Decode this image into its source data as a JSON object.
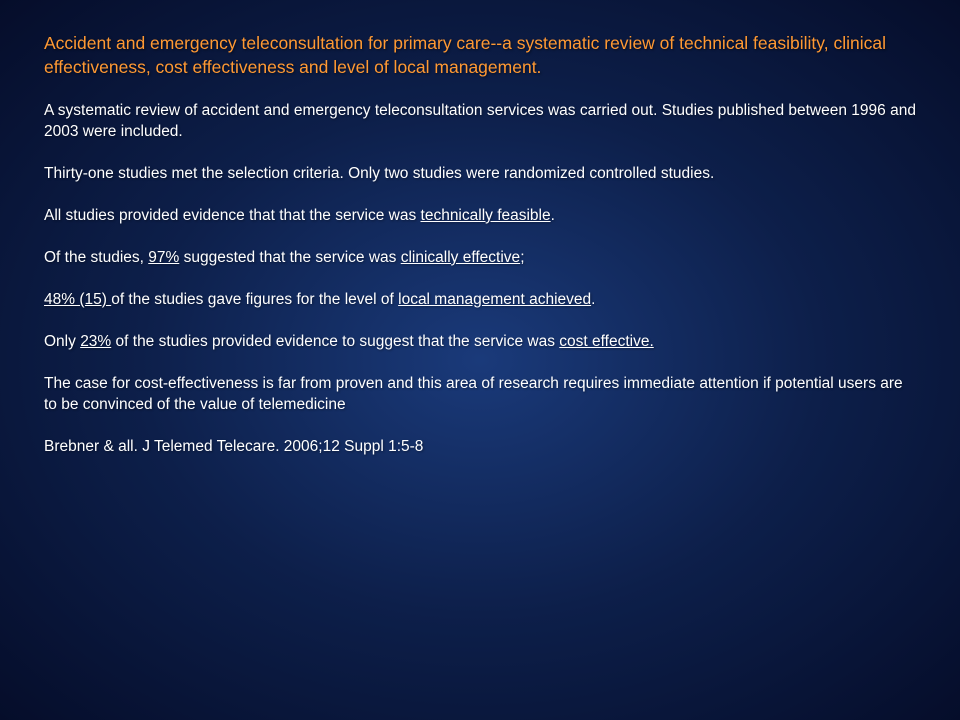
{
  "slide": {
    "background": {
      "gradient_center": "#1a3a7a",
      "gradient_mid": "#0d1f4a",
      "gradient_edge": "#050d2a"
    },
    "title": {
      "text": "Accident and emergency teleconsultation for primary care--a systematic review of technical feasibility, clinical effectiveness, cost effectiveness and level of local management.",
      "color": "#ff9933",
      "fontsize": 17.5
    },
    "body": {
      "color": "#ffffff",
      "fontsize": 15.5,
      "p1": "A systematic review of accident and emergency teleconsultation services was carried out. Studies published between 1996 and 2003 were included.",
      "p2": "Thirty-one studies met the selection criteria. Only two studies were randomized controlled studies.",
      "p3_pre": "All studies provided evidence that that the service was ",
      "p3_u": "technically feasible",
      "p3_post": ".",
      "p4_pre": "Of the studies, ",
      "p4_u1": "97%",
      "p4_mid": " suggested that the service was ",
      "p4_u2": "clinically effective",
      "p4_post": ";",
      "p5_u1": "48% (15) ",
      "p5_mid": "of the studies gave figures for the level of ",
      "p5_u2": "local management achieved",
      "p5_post": ".",
      "p6_pre": "Only ",
      "p6_u1": "23%",
      "p6_mid": " of the studies provided evidence to suggest  that the service was ",
      "p6_u2": "cost effective.",
      "p7": "The case for cost-effectiveness is far from proven and this area of research requires immediate attention if potential users are to be convinced of the value of telemedicine",
      "ref": "Brebner & all. J Telemed Telecare. 2006;12 Suppl 1:5-8"
    }
  }
}
